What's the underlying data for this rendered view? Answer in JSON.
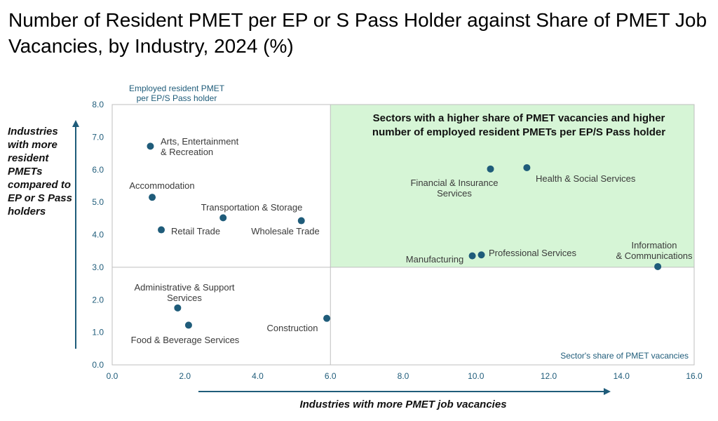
{
  "title": "Number of Resident PMET per EP or S Pass Holder against Share of PMET Job Vacancies, by Industry, 2024 (%)",
  "left_note": "Industries with more resident PMETs compared to EP or S Pass holders",
  "bottom_note": "Industries with more PMET job vacancies",
  "colors": {
    "point": "#1F5C7A",
    "axis_text": "#1F5C7A",
    "quadrant_fill": "#D6F5D6",
    "grid": "#BFBFBF",
    "arrow": "#1F5C7A"
  },
  "chart_data": {
    "type": "scatter",
    "title": "Number of Resident PMET per EP or S Pass Holder against Share of PMET Job Vacancies, by Industry, 2024 (%)",
    "ylabel": "Employed resident PMET per EP/S Pass holder",
    "xlabel": "Sector's share of PMET vacancies",
    "xlim": [
      0,
      16
    ],
    "ylim": [
      0,
      8
    ],
    "xticks": [
      "0.0",
      "2.0",
      "4.0",
      "6.0",
      "8.0",
      "10.0",
      "12.0",
      "14.0",
      "16.0"
    ],
    "yticks": [
      "0.0",
      "1.0",
      "2.0",
      "3.0",
      "4.0",
      "5.0",
      "6.0",
      "7.0",
      "8.0"
    ],
    "quadrant_dividers": {
      "x": 6.0,
      "y": 3.0
    },
    "highlight_quadrant": {
      "x_range": [
        6.0,
        16.0
      ],
      "y_range": [
        3.0,
        8.0
      ],
      "label": "Sectors with a higher share of PMET vacancies and higher number of employed resident PMETs per EP/S Pass holder"
    },
    "grid": false,
    "points": [
      {
        "label": "Arts, Entertainment & Recreation",
        "x": 1.05,
        "y": 6.72
      },
      {
        "label": "Accommodation",
        "x": 1.1,
        "y": 5.15
      },
      {
        "label": "Transportation & Storage",
        "x": 3.05,
        "y": 4.52
      },
      {
        "label": "Retail Trade",
        "x": 1.35,
        "y": 4.15
      },
      {
        "label": "Wholesale Trade",
        "x": 5.2,
        "y": 4.43
      },
      {
        "label": "Administrative & Support Services",
        "x": 1.8,
        "y": 1.75
      },
      {
        "label": "Food & Beverage Services",
        "x": 2.1,
        "y": 1.22
      },
      {
        "label": "Construction",
        "x": 5.9,
        "y": 1.43
      },
      {
        "label": "Financial & Insurance Services",
        "x": 10.4,
        "y": 6.02
      },
      {
        "label": "Health & Social Services",
        "x": 11.4,
        "y": 6.06
      },
      {
        "label": "Manufacturing",
        "x": 9.9,
        "y": 3.35
      },
      {
        "label": "Professional Services",
        "x": 10.15,
        "y": 3.38
      },
      {
        "label": "Information & Communications",
        "x": 15.0,
        "y": 3.02
      }
    ]
  }
}
